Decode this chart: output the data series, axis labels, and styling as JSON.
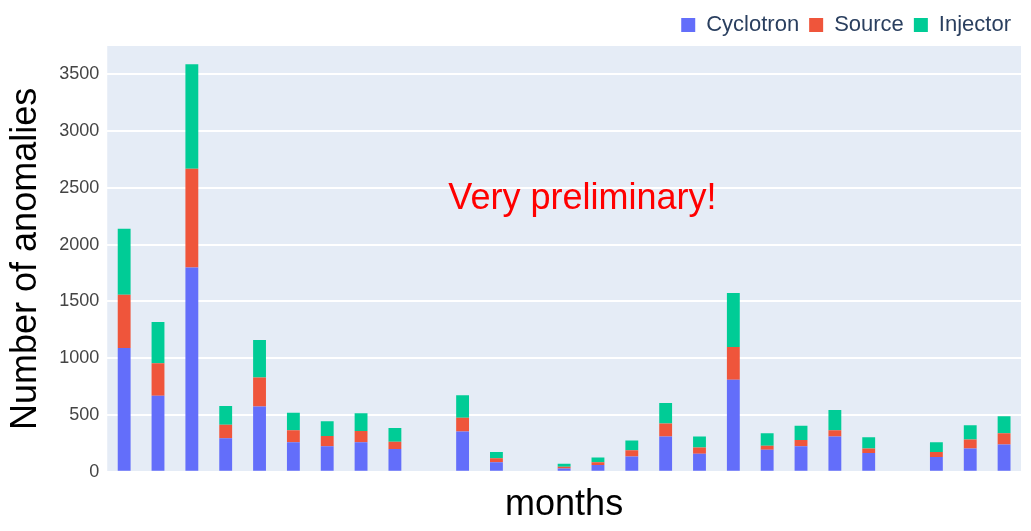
{
  "chart_data": {
    "type": "bar",
    "stacked": true,
    "xlabel": "months",
    "ylabel": "Number of anomalies",
    "annotations": [
      "Very preliminary!"
    ],
    "categories": [
      null,
      null,
      null,
      null,
      null,
      null,
      null,
      null,
      null,
      null,
      null,
      null,
      null,
      null,
      null,
      null,
      null,
      null,
      null,
      null,
      null,
      null,
      null,
      null,
      null,
      null,
      null
    ],
    "series": [
      {
        "name": "Cyclotron",
        "color": "#636efa",
        "values": [
          1090,
          670,
          1800,
          295,
          575,
          260,
          225,
          260,
          200,
          null,
          355,
          85,
          null,
          30,
          60,
          135,
          310,
          160,
          810,
          195,
          225,
          310,
          165,
          null,
          130,
          205,
          240
        ]
      },
      {
        "name": "Source",
        "color": "#ef553b",
        "values": [
          470,
          285,
          870,
          120,
          255,
          105,
          90,
          100,
          65,
          null,
          120,
          35,
          null,
          15,
          25,
          55,
          115,
          55,
          290,
          35,
          55,
          55,
          40,
          null,
          45,
          80,
          100
        ]
      },
      {
        "name": "Injector",
        "color": "#00cc96",
        "values": [
          580,
          365,
          920,
          165,
          330,
          155,
          130,
          155,
          120,
          null,
          200,
          55,
          null,
          25,
          40,
          85,
          180,
          95,
          475,
          110,
          125,
          180,
          100,
          null,
          85,
          125,
          150
        ]
      }
    ],
    "ylim": [
      0,
      3750
    ],
    "yticks": [
      0,
      500,
      1000,
      1500,
      2000,
      2500,
      3000,
      3500
    ],
    "grid": "y",
    "legend": "top right"
  }
}
